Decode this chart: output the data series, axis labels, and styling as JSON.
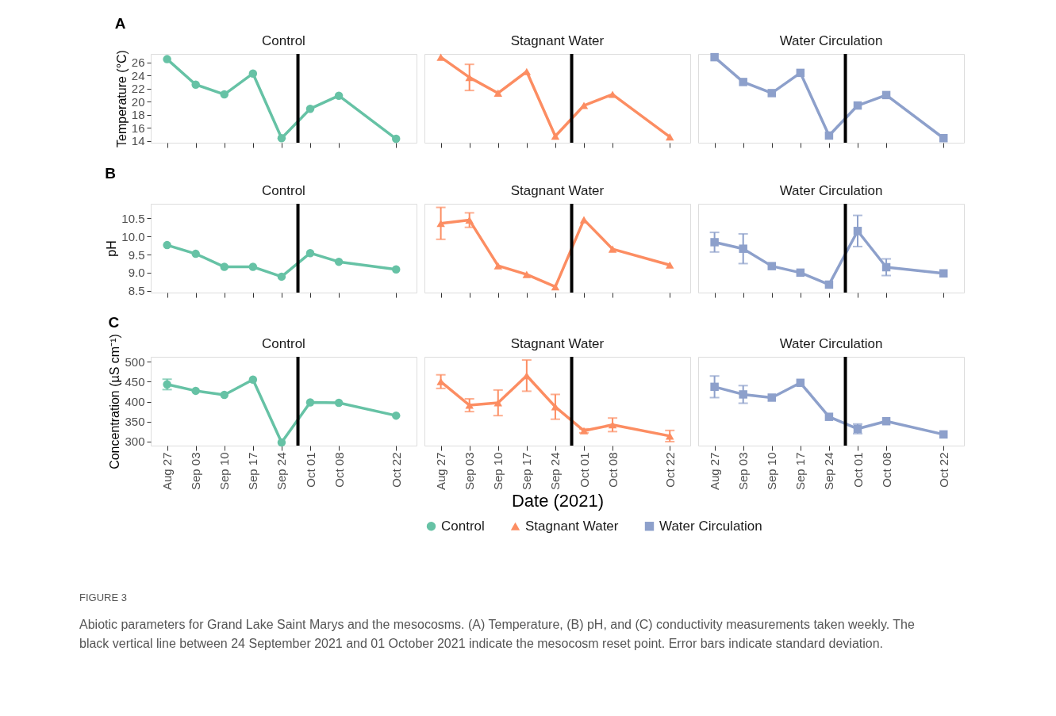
{
  "chart_data": [
    {
      "type": "line",
      "title": "Control",
      "ylabel": "Temperature (°C)",
      "annotations": [
        "A"
      ],
      "tick_labels": "y",
      "marker": "circle",
      "x": [
        "2021-08-27",
        "2021-09-03",
        "2021-09-10",
        "2021-09-17",
        "2021-09-24",
        "2021-10-01",
        "2021-10-08",
        "2021-10-22"
      ],
      "xlim": [
        "2021-08-23",
        "2021-10-27"
      ],
      "xticks": [
        {
          "value": "2021-08-27",
          "label": null
        },
        {
          "value": "2021-09-03",
          "label": null
        },
        {
          "value": "2021-09-10",
          "label": null
        },
        {
          "value": "2021-09-17",
          "label": null
        },
        {
          "value": "2021-09-24",
          "label": null
        },
        {
          "value": "2021-10-01",
          "label": null
        },
        {
          "value": "2021-10-08",
          "label": null
        },
        {
          "value": "2021-10-22",
          "label": null
        }
      ],
      "ylim": [
        13.7,
        27.3
      ],
      "yticks": [
        14,
        16,
        18,
        20,
        22,
        24,
        26
      ],
      "ref_lines": [
        {
          "axis": "x",
          "value": "2021-09-28",
          "color": "#000000"
        }
      ],
      "series": [
        {
          "color": "#66c2a5",
          "values": [
            26.5,
            22.6,
            21.1,
            24.3,
            14.4,
            18.9,
            20.9,
            14.3
          ]
        }
      ]
    },
    {
      "type": "line",
      "title": "Stagnant Water",
      "tick_labels": false,
      "marker": "triangle",
      "x": [
        "2021-08-27",
        "2021-09-03",
        "2021-09-10",
        "2021-09-17",
        "2021-09-24",
        "2021-10-01",
        "2021-10-08",
        "2021-10-22"
      ],
      "xlim": [
        "2021-08-23",
        "2021-10-27"
      ],
      "xticks": [
        {
          "value": "2021-08-27",
          "label": null
        },
        {
          "value": "2021-09-03",
          "label": null
        },
        {
          "value": "2021-09-10",
          "label": null
        },
        {
          "value": "2021-09-17",
          "label": null
        },
        {
          "value": "2021-09-24",
          "label": null
        },
        {
          "value": "2021-10-01",
          "label": null
        },
        {
          "value": "2021-10-08",
          "label": null
        },
        {
          "value": "2021-10-22",
          "label": null
        }
      ],
      "ylim": [
        13.7,
        27.3
      ],
      "ref_lines": [
        {
          "axis": "x",
          "value": "2021-09-28",
          "color": "#000000"
        }
      ],
      "series": [
        {
          "color": "#fc8d62",
          "values": [
            26.8,
            23.7,
            21.3,
            24.6,
            14.7,
            19.4,
            21.1,
            14.6
          ],
          "errors": [
            null,
            2.0,
            null,
            null,
            null,
            null,
            null,
            null
          ]
        }
      ]
    },
    {
      "type": "line",
      "title": "Water Circulation",
      "tick_labels": false,
      "marker": "square",
      "x": [
        "2021-08-27",
        "2021-09-03",
        "2021-09-10",
        "2021-09-17",
        "2021-09-24",
        "2021-10-01",
        "2021-10-08",
        "2021-10-22"
      ],
      "xlim": [
        "2021-08-23",
        "2021-10-27"
      ],
      "xticks": [
        {
          "value": "2021-08-27",
          "label": null
        },
        {
          "value": "2021-09-03",
          "label": null
        },
        {
          "value": "2021-09-10",
          "label": null
        },
        {
          "value": "2021-09-17",
          "label": null
        },
        {
          "value": "2021-09-24",
          "label": null
        },
        {
          "value": "2021-10-01",
          "label": null
        },
        {
          "value": "2021-10-08",
          "label": null
        },
        {
          "value": "2021-10-22",
          "label": null
        }
      ],
      "ylim": [
        13.7,
        27.3
      ],
      "ref_lines": [
        {
          "axis": "x",
          "value": "2021-09-28",
          "color": "#000000"
        }
      ],
      "series": [
        {
          "color": "#8da0cb",
          "values": [
            26.8,
            23.0,
            21.3,
            24.4,
            14.8,
            19.4,
            21.0,
            14.4
          ]
        }
      ]
    },
    {
      "type": "line",
      "title": "Control",
      "ylabel": "pH",
      "annotations": [
        "B"
      ],
      "tick_labels": "y",
      "marker": "circle",
      "x": [
        "2021-08-27",
        "2021-09-03",
        "2021-09-10",
        "2021-09-17",
        "2021-09-24",
        "2021-10-01",
        "2021-10-08",
        "2021-10-22"
      ],
      "xlim": [
        "2021-08-23",
        "2021-10-27"
      ],
      "xticks": [
        {
          "value": "2021-08-27",
          "label": null
        },
        {
          "value": "2021-09-03",
          "label": null
        },
        {
          "value": "2021-09-10",
          "label": null
        },
        {
          "value": "2021-09-17",
          "label": null
        },
        {
          "value": "2021-09-24",
          "label": null
        },
        {
          "value": "2021-10-01",
          "label": null
        },
        {
          "value": "2021-10-08",
          "label": null
        },
        {
          "value": "2021-10-22",
          "label": null
        }
      ],
      "ylim": [
        8.45,
        10.9
      ],
      "yticks": [
        8.5,
        {
          "value": 9,
          "label": "9.0"
        },
        9.5,
        {
          "value": 10,
          "label": "10.0"
        },
        10.5
      ],
      "ref_lines": [
        {
          "axis": "x",
          "value": "2021-09-28",
          "color": "#000000"
        }
      ],
      "series": [
        {
          "color": "#66c2a5",
          "values": [
            9.76,
            9.52,
            9.16,
            9.16,
            8.89,
            9.54,
            9.3,
            9.09
          ]
        }
      ]
    },
    {
      "type": "line",
      "title": "Stagnant Water",
      "tick_labels": false,
      "marker": "triangle",
      "x": [
        "2021-08-27",
        "2021-09-03",
        "2021-09-10",
        "2021-09-17",
        "2021-09-24",
        "2021-10-01",
        "2021-10-08",
        "2021-10-22"
      ],
      "xlim": [
        "2021-08-23",
        "2021-10-27"
      ],
      "xticks": [
        {
          "value": "2021-08-27",
          "label": null
        },
        {
          "value": "2021-09-03",
          "label": null
        },
        {
          "value": "2021-09-10",
          "label": null
        },
        {
          "value": "2021-09-17",
          "label": null
        },
        {
          "value": "2021-09-24",
          "label": null
        },
        {
          "value": "2021-10-01",
          "label": null
        },
        {
          "value": "2021-10-08",
          "label": null
        },
        {
          "value": "2021-10-22",
          "label": null
        }
      ],
      "ylim": [
        8.45,
        10.9
      ],
      "ref_lines": [
        {
          "axis": "x",
          "value": "2021-09-28",
          "color": "#000000"
        }
      ],
      "series": [
        {
          "color": "#fc8d62",
          "values": [
            10.36,
            10.45,
            9.19,
            8.95,
            8.61,
            10.46,
            9.65,
            9.21
          ],
          "errors": [
            0.44,
            0.2,
            null,
            null,
            null,
            null,
            null,
            null
          ]
        }
      ]
    },
    {
      "type": "line",
      "title": "Water Circulation",
      "tick_labels": false,
      "marker": "square",
      "x": [
        "2021-08-27",
        "2021-09-03",
        "2021-09-10",
        "2021-09-17",
        "2021-09-24",
        "2021-10-01",
        "2021-10-08",
        "2021-10-22"
      ],
      "xlim": [
        "2021-08-23",
        "2021-10-27"
      ],
      "xticks": [
        {
          "value": "2021-08-27",
          "label": null
        },
        {
          "value": "2021-09-03",
          "label": null
        },
        {
          "value": "2021-09-10",
          "label": null
        },
        {
          "value": "2021-09-17",
          "label": null
        },
        {
          "value": "2021-09-24",
          "label": null
        },
        {
          "value": "2021-10-01",
          "label": null
        },
        {
          "value": "2021-10-08",
          "label": null
        },
        {
          "value": "2021-10-22",
          "label": null
        }
      ],
      "ylim": [
        8.45,
        10.9
      ],
      "ref_lines": [
        {
          "axis": "x",
          "value": "2021-09-28",
          "color": "#000000"
        }
      ],
      "series": [
        {
          "color": "#8da0cb",
          "values": [
            9.84,
            9.66,
            9.18,
            9.0,
            8.67,
            10.15,
            9.15,
            8.98
          ],
          "errors": [
            0.27,
            0.41,
            null,
            null,
            null,
            0.43,
            0.23,
            null
          ]
        }
      ]
    },
    {
      "type": "line",
      "title": "Control",
      "ylabel": "Concentration (µS cm⁻¹)",
      "annotations": [
        "C",
        "FIGURE 3",
        "Abiotic parameters for Grand Lake Saint Marys and the mesocosms. (A) Temperature, (B) pH, and (C) conductivity measurements taken weekly. The",
        "black vertical line between 24 September 2021 and 01 October 2021 indicate the mesocosm reset point. Error bars indicate standard deviation."
      ],
      "marker": "circle",
      "x": [
        "2021-08-27",
        "2021-09-03",
        "2021-09-10",
        "2021-09-17",
        "2021-09-24",
        "2021-10-01",
        "2021-10-08",
        "2021-10-22"
      ],
      "xlim": [
        "2021-08-23",
        "2021-10-27"
      ],
      "xticks": [
        {
          "value": "2021-08-27",
          "label": "Aug 27"
        },
        {
          "value": "2021-09-03",
          "label": "Sep 03"
        },
        {
          "value": "2021-09-10",
          "label": "Sep 10"
        },
        {
          "value": "2021-09-17",
          "label": "Sep 17"
        },
        {
          "value": "2021-09-24",
          "label": "Sep 24"
        },
        {
          "value": "2021-10-01",
          "label": "Oct 01"
        },
        {
          "value": "2021-10-08",
          "label": "Oct 08"
        },
        {
          "value": "2021-10-22",
          "label": "Oct 22"
        }
      ],
      "ylim": [
        290,
        512
      ],
      "yticks": [
        300,
        350,
        400,
        450,
        500
      ],
      "ref_lines": [
        {
          "axis": "x",
          "value": "2021-09-28",
          "color": "#000000"
        }
      ],
      "series": [
        {
          "name": "Control",
          "color": "#66c2a5",
          "values": [
            443,
            427,
            417,
            455,
            298,
            398,
            397,
            365
          ],
          "errors": [
            13,
            null,
            null,
            null,
            null,
            null,
            null,
            null
          ]
        }
      ]
    },
    {
      "type": "line",
      "title": "Stagnant Water",
      "xlabel": "Date (2021)",
      "legend": "bottom",
      "tick_labels": "x",
      "marker": "triangle",
      "x": [
        "2021-08-27",
        "2021-09-03",
        "2021-09-10",
        "2021-09-17",
        "2021-09-24",
        "2021-10-01",
        "2021-10-08",
        "2021-10-22"
      ],
      "xlim": [
        "2021-08-23",
        "2021-10-27"
      ],
      "xticks": [
        {
          "value": "2021-08-27",
          "label": "Aug 27"
        },
        {
          "value": "2021-09-03",
          "label": "Sep 03"
        },
        {
          "value": "2021-09-10",
          "label": "Sep 10"
        },
        {
          "value": "2021-09-17",
          "label": "Sep 17"
        },
        {
          "value": "2021-09-24",
          "label": "Sep 24"
        },
        {
          "value": "2021-10-01",
          "label": "Oct 01"
        },
        {
          "value": "2021-10-08",
          "label": "Oct 08"
        },
        {
          "value": "2021-10-22",
          "label": "Oct 22"
        }
      ],
      "ylim": [
        290,
        512
      ],
      "ref_lines": [
        {
          "axis": "x",
          "value": "2021-09-28",
          "color": "#000000"
        }
      ],
      "series": [
        {
          "name": "Stagnant Water",
          "color": "#fc8d62",
          "values": [
            450,
            391,
            397,
            465,
            387,
            327,
            342,
            314
          ],
          "errors": [
            17,
            16,
            32,
            39,
            31,
            5,
            17,
            14
          ]
        }
      ]
    },
    {
      "type": "line",
      "title": "Water Circulation",
      "tick_labels": "x",
      "marker": "square",
      "x": [
        "2021-08-27",
        "2021-09-03",
        "2021-09-10",
        "2021-09-17",
        "2021-09-24",
        "2021-10-01",
        "2021-10-08",
        "2021-10-22"
      ],
      "xlim": [
        "2021-08-23",
        "2021-10-27"
      ],
      "xticks": [
        {
          "value": "2021-08-27",
          "label": "Aug 27"
        },
        {
          "value": "2021-09-03",
          "label": "Sep 03"
        },
        {
          "value": "2021-09-10",
          "label": "Sep 10"
        },
        {
          "value": "2021-09-17",
          "label": "Sep 17"
        },
        {
          "value": "2021-09-24",
          "label": "Sep 24"
        },
        {
          "value": "2021-10-01",
          "label": "Oct 01"
        },
        {
          "value": "2021-10-08",
          "label": "Oct 08"
        },
        {
          "value": "2021-10-22",
          "label": "Oct 22"
        }
      ],
      "ylim": [
        290,
        512
      ],
      "ref_lines": [
        {
          "axis": "x",
          "value": "2021-09-28",
          "color": "#000000"
        }
      ],
      "series": [
        {
          "name": "Water Circulation",
          "color": "#8da0cb",
          "values": [
            437,
            418,
            410,
            447,
            362,
            332,
            351,
            318
          ],
          "errors": [
            27,
            22,
            null,
            null,
            null,
            12,
            null,
            null
          ]
        }
      ]
    }
  ]
}
